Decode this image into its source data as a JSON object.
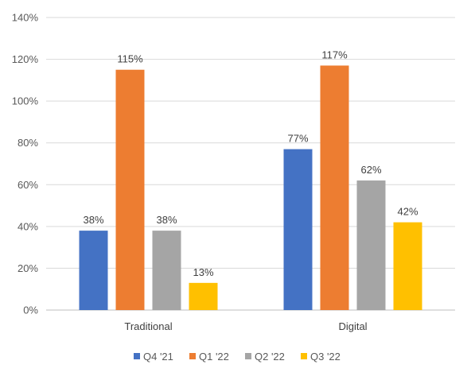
{
  "chart_data": {
    "type": "bar",
    "categories": [
      "Traditional",
      "Digital"
    ],
    "series": [
      {
        "name": "Q4 '21",
        "values": [
          38,
          77
        ],
        "color": "#4472C4"
      },
      {
        "name": "Q1 '22",
        "values": [
          115,
          117
        ],
        "color": "#ED7D31"
      },
      {
        "name": "Q2 '22",
        "values": [
          38,
          62
        ],
        "color": "#A5A5A5"
      },
      {
        "name": "Q3 '22",
        "values": [
          13,
          42
        ],
        "color": "#FFC000"
      }
    ],
    "y_ticks": [
      "0%",
      "20%",
      "40%",
      "60%",
      "80%",
      "100%",
      "120%",
      "140%"
    ],
    "ylim": [
      0,
      140
    ],
    "value_suffix": "%",
    "grid": true,
    "legend_position": "bottom",
    "data_labels": true
  }
}
